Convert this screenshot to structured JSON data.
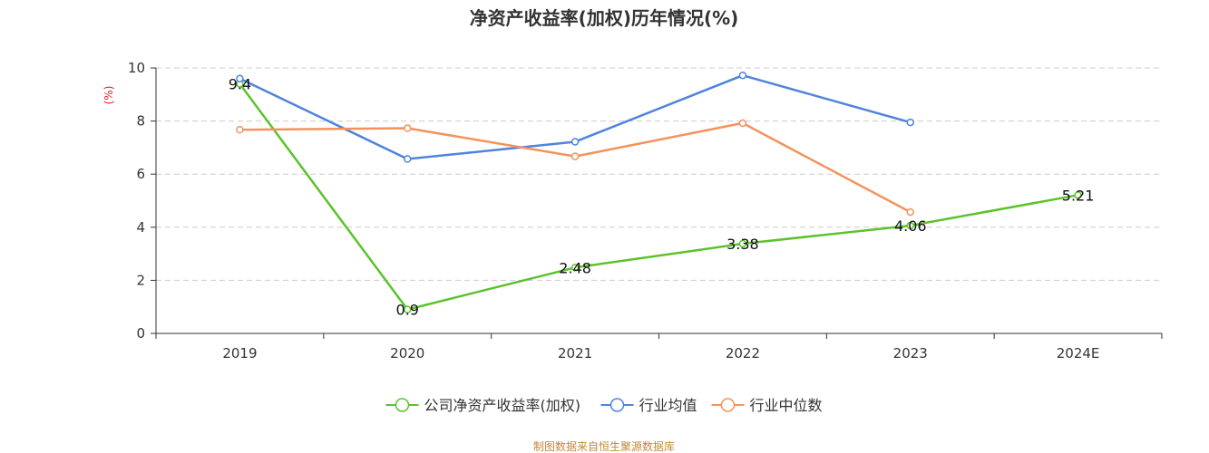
{
  "chart_data": {
    "type": "line",
    "title": "净资产收益率(加权)历年情况(%)",
    "ylabel": "(%)",
    "xlabel": "",
    "categories": [
      "2019",
      "2020",
      "2021",
      "2022",
      "2023",
      "2024E"
    ],
    "ylim": [
      0,
      10
    ],
    "yticks": [
      0,
      2,
      4,
      6,
      8,
      10
    ],
    "grid": true,
    "legend_position": "bottom",
    "series": [
      {
        "name": "公司净资产收益率(加权)",
        "color": "#5cc22c",
        "values": [
          9.4,
          0.9,
          2.48,
          3.38,
          4.06,
          5.21
        ],
        "labels": [
          "9.4",
          "0.9",
          "2.48",
          "3.38",
          "4.06",
          "5.21"
        ]
      },
      {
        "name": "行业均值",
        "color": "#4f84dc",
        "values": [
          9.6,
          6.57,
          7.22,
          9.72,
          7.95,
          null
        ]
      },
      {
        "name": "行业中位数",
        "color": "#f4925e",
        "values": [
          7.67,
          7.73,
          6.67,
          7.92,
          4.57,
          null
        ]
      }
    ],
    "source": "制图数据来自恒生聚源数据库"
  }
}
